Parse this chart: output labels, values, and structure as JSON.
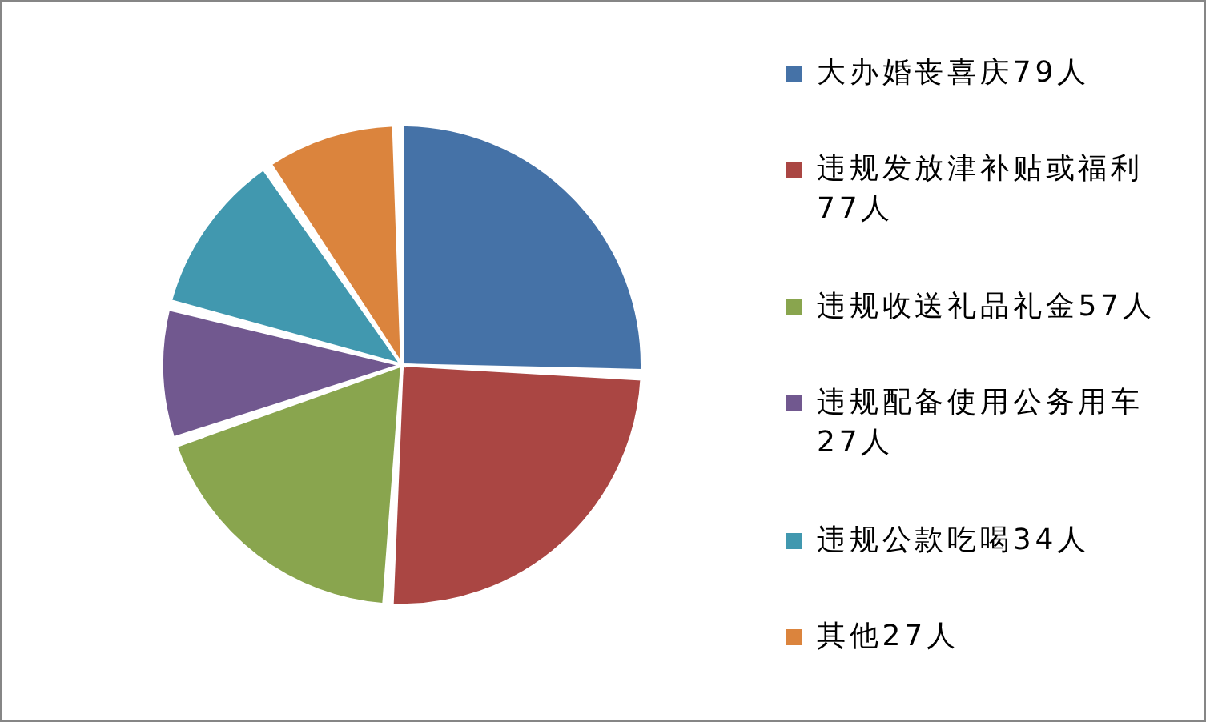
{
  "chart_data": {
    "type": "pie",
    "categories": [
      "大办婚丧喜庆79人",
      "违规发放津补贴或福利77人",
      "违规收送礼品礼金57人",
      "违规配备使用公务用车27人",
      "违规公款吃喝34人",
      "其他27人"
    ],
    "values": [
      79,
      77,
      57,
      27,
      34,
      27
    ],
    "colors": [
      "#4572a7",
      "#aa4643",
      "#89a54e",
      "#71588f",
      "#4198af",
      "#db843d"
    ],
    "legend": "right"
  }
}
